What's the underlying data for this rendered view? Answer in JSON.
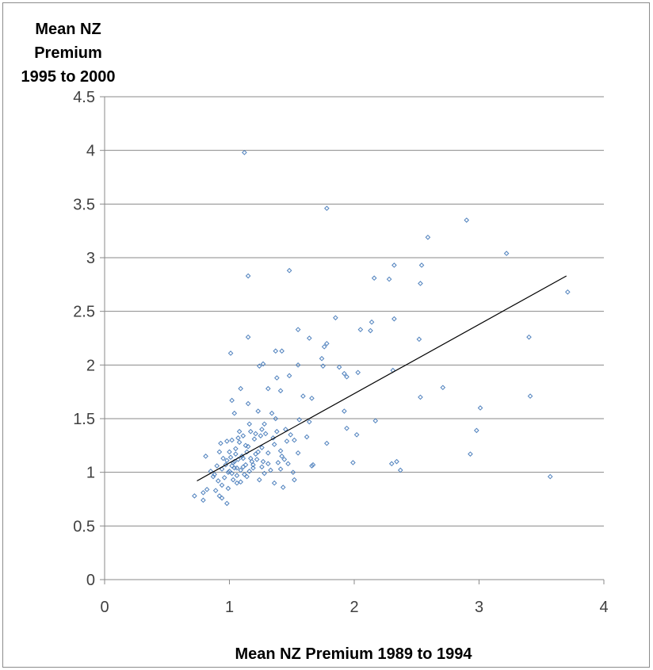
{
  "chart_data": {
    "type": "scatter",
    "title": "",
    "ylabel_lines": [
      "Mean NZ",
      "Premium",
      "1995 to 2000"
    ],
    "xlabel": "Mean NZ Premium 1989 to 1994",
    "xlim": [
      0,
      4
    ],
    "ylim": [
      0,
      4.5
    ],
    "x_ticks": [
      0,
      1,
      2,
      3,
      4
    ],
    "y_ticks": [
      0,
      0.5,
      1,
      1.5,
      2,
      2.5,
      3,
      3.5,
      4,
      4.5
    ],
    "x_tick_labels": [
      "0",
      "1",
      "2",
      "3",
      "4"
    ],
    "y_tick_labels": [
      "0",
      "0.5",
      "1",
      "1.5",
      "2",
      "2.5",
      "3",
      "3.5",
      "4",
      "4.5"
    ],
    "grid": "horizontal",
    "legend": "none",
    "marker_color": "#4f81bd",
    "trendline_color": "#000000",
    "trendline": {
      "x": [
        0.74,
        3.7
      ],
      "y": [
        0.92,
        2.83
      ]
    },
    "series": [
      {
        "points": [
          [
            1.12,
            3.98
          ],
          [
            1.78,
            3.46
          ],
          [
            2.9,
            3.35
          ],
          [
            2.59,
            3.19
          ],
          [
            3.22,
            3.04
          ],
          [
            2.32,
            2.93
          ],
          [
            2.54,
            2.93
          ],
          [
            1.15,
            2.83
          ],
          [
            1.48,
            2.88
          ],
          [
            2.16,
            2.81
          ],
          [
            2.28,
            2.8
          ],
          [
            2.53,
            2.76
          ],
          [
            3.71,
            2.68
          ],
          [
            1.85,
            2.44
          ],
          [
            2.32,
            2.43
          ],
          [
            2.14,
            2.4
          ],
          [
            2.13,
            2.32
          ],
          [
            2.05,
            2.33
          ],
          [
            1.55,
            2.33
          ],
          [
            1.15,
            2.26
          ],
          [
            2.52,
            2.24
          ],
          [
            3.4,
            2.26
          ],
          [
            1.64,
            2.25
          ],
          [
            1.78,
            2.2
          ],
          [
            1.76,
            2.17
          ],
          [
            1.37,
            2.13
          ],
          [
            1.42,
            2.13
          ],
          [
            1.01,
            2.11
          ],
          [
            1.74,
            2.06
          ],
          [
            1.75,
            1.99
          ],
          [
            1.88,
            1.98
          ],
          [
            1.55,
            2.0
          ],
          [
            1.24,
            1.99
          ],
          [
            1.27,
            2.01
          ],
          [
            2.31,
            1.95
          ],
          [
            1.92,
            1.92
          ],
          [
            1.94,
            1.89
          ],
          [
            2.03,
            1.93
          ],
          [
            1.48,
            1.9
          ],
          [
            1.38,
            1.88
          ],
          [
            1.09,
            1.78
          ],
          [
            2.71,
            1.79
          ],
          [
            1.31,
            1.78
          ],
          [
            1.41,
            1.76
          ],
          [
            3.41,
            1.71
          ],
          [
            2.53,
            1.7
          ],
          [
            1.59,
            1.71
          ],
          [
            1.66,
            1.69
          ],
          [
            1.02,
            1.67
          ],
          [
            1.15,
            1.64
          ],
          [
            1.92,
            1.57
          ],
          [
            3.01,
            1.6
          ],
          [
            1.23,
            1.57
          ],
          [
            1.34,
            1.55
          ],
          [
            1.04,
            1.55
          ],
          [
            1.37,
            1.5
          ],
          [
            1.56,
            1.49
          ],
          [
            1.64,
            1.47
          ],
          [
            2.17,
            1.48
          ],
          [
            1.16,
            1.45
          ],
          [
            1.94,
            1.41
          ],
          [
            2.98,
            1.39
          ],
          [
            1.26,
            1.4
          ],
          [
            1.45,
            1.4
          ],
          [
            2.02,
            1.35
          ],
          [
            1.08,
            1.38
          ],
          [
            1.21,
            1.36
          ],
          [
            1.35,
            1.32
          ],
          [
            1.52,
            1.3
          ],
          [
            1.62,
            1.33
          ],
          [
            1.78,
            1.27
          ],
          [
            1.13,
            1.25
          ],
          [
            0.98,
            1.29
          ],
          [
            1.26,
            1.23
          ],
          [
            1.41,
            1.2
          ],
          [
            2.93,
            1.17
          ],
          [
            1.55,
            1.18
          ],
          [
            1.21,
            1.17
          ],
          [
            1.05,
            1.17
          ],
          [
            0.92,
            1.19
          ],
          [
            0.81,
            1.15
          ],
          [
            1.99,
            1.09
          ],
          [
            2.3,
            1.08
          ],
          [
            2.34,
            1.1
          ],
          [
            1.67,
            1.07
          ],
          [
            1.47,
            1.08
          ],
          [
            1.31,
            1.08
          ],
          [
            1.11,
            1.05
          ],
          [
            1.02,
            1.06
          ],
          [
            0.94,
            1.03
          ],
          [
            0.85,
            1.01
          ],
          [
            2.37,
            1.02
          ],
          [
            1.41,
            1.03
          ],
          [
            1.19,
            1.04
          ],
          [
            0.99,
            1.0
          ],
          [
            0.88,
            0.98
          ],
          [
            1.06,
            0.97
          ],
          [
            1.28,
            0.99
          ],
          [
            1.51,
            1.0
          ],
          [
            1.14,
            0.96
          ],
          [
            0.96,
            0.95
          ],
          [
            1.03,
            0.93
          ],
          [
            0.91,
            0.92
          ],
          [
            1.24,
            0.93
          ],
          [
            1.52,
            0.93
          ],
          [
            3.57,
            0.96
          ],
          [
            1.09,
            0.91
          ],
          [
            0.94,
            0.88
          ],
          [
            1.36,
            0.9
          ],
          [
            1.43,
            0.86
          ],
          [
            0.82,
            0.84
          ],
          [
            0.99,
            0.85
          ],
          [
            0.89,
            0.83
          ],
          [
            0.79,
            0.81
          ],
          [
            0.92,
            0.78
          ],
          [
            0.94,
            0.76
          ],
          [
            0.72,
            0.78
          ],
          [
            0.79,
            0.74
          ],
          [
            0.98,
            0.71
          ],
          [
            1.03,
            1.09
          ],
          [
            1.07,
            1.12
          ],
          [
            1.09,
            1.02
          ],
          [
            1.12,
            0.98
          ],
          [
            1.01,
            1.14
          ],
          [
            1.05,
            1.22
          ],
          [
            1.17,
            1.13
          ],
          [
            1.0,
            1.01
          ],
          [
            0.97,
            1.07
          ],
          [
            1.1,
            1.15
          ],
          [
            1.13,
            1.07
          ],
          [
            1.06,
            1.04
          ],
          [
            1.02,
            0.99
          ],
          [
            1.18,
            1.1
          ],
          [
            1.08,
            1.28
          ],
          [
            1.14,
            1.19
          ],
          [
            1.2,
            1.31
          ],
          [
            1.25,
            1.34
          ],
          [
            1.29,
            1.36
          ],
          [
            1.17,
            1.38
          ],
          [
            1.02,
            1.3
          ],
          [
            1.07,
            1.32
          ],
          [
            0.95,
            1.13
          ],
          [
            0.9,
            1.06
          ],
          [
            1.22,
            1.12
          ],
          [
            1.31,
            1.18
          ],
          [
            1.36,
            1.26
          ],
          [
            1.42,
            1.15
          ],
          [
            1.26,
            1.05
          ],
          [
            1.16,
            1.01
          ],
          [
            1.33,
            1.02
          ],
          [
            1.04,
            1.1
          ],
          [
            1.11,
            1.13
          ],
          [
            1.0,
            1.19
          ],
          [
            0.98,
            1.11
          ],
          [
            1.19,
            1.07
          ],
          [
            1.23,
            1.19
          ],
          [
            1.38,
            1.38
          ],
          [
            1.28,
            1.45
          ],
          [
            1.46,
            1.29
          ],
          [
            1.66,
            1.06
          ],
          [
            1.44,
            1.12
          ],
          [
            1.06,
            0.9
          ],
          [
            0.87,
            0.96
          ],
          [
            0.93,
            1.27
          ],
          [
            1.15,
            1.24
          ],
          [
            1.27,
            1.1
          ],
          [
            1.39,
            1.09
          ],
          [
            1.49,
            1.35
          ],
          [
            1.11,
            1.34
          ],
          [
            1.04,
            1.04
          ]
        ]
      }
    ]
  }
}
